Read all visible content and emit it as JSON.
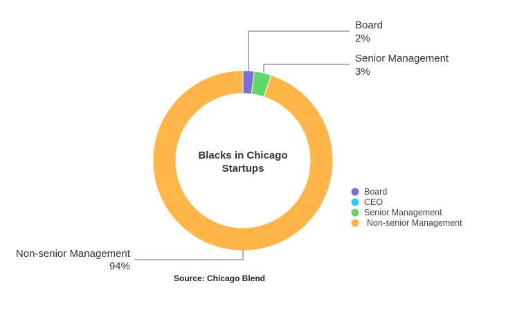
{
  "chart_data": {
    "type": "pie",
    "variant": "donut",
    "center_title": [
      "Blacks in Chicago",
      "Startups"
    ],
    "source": "Source: Chicago Blend",
    "legend_placement": "right",
    "series": [
      {
        "name": "Board",
        "value": 2,
        "label": "2%",
        "color": "#7b6fd6"
      },
      {
        "name": "CEO",
        "value": 0,
        "label": "",
        "color": "#38c8e8"
      },
      {
        "name": "Senior Management",
        "value": 3,
        "label": "3%",
        "color": "#5fd86a"
      },
      {
        "name": "Non-senior Management",
        "value": 94,
        "label": "94%",
        "color": "#ffb547"
      }
    ]
  }
}
